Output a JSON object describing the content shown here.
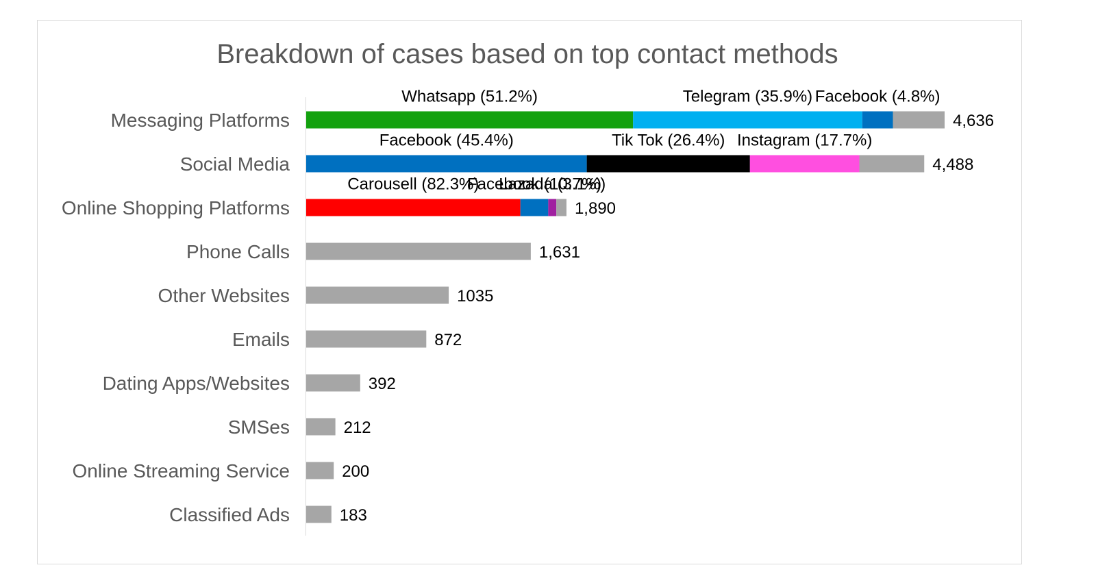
{
  "chart_data": {
    "type": "bar",
    "orientation": "horizontal",
    "stacked": true,
    "title": "Breakdown of cases based on top contact methods",
    "xlabel": "",
    "ylabel": "",
    "xlim": [
      0,
      4636
    ],
    "grid": false,
    "legend": "none",
    "categories": [
      {
        "name": "Messaging Platforms",
        "total": 4636,
        "total_label": "4,636",
        "segments": [
          {
            "label": "Whatsapp (51.2%)",
            "fraction": 0.512,
            "color": "#13A10E"
          },
          {
            "label": "Telegram (35.9%)",
            "fraction": 0.359,
            "color": "#00B0F0"
          },
          {
            "label": "Facebook (4.8%)",
            "fraction": 0.048,
            "color": "#0070C0"
          },
          {
            "label": "",
            "fraction": 0.081,
            "color": "#A6A6A6"
          }
        ]
      },
      {
        "name": "Social Media",
        "total": 4488,
        "total_label": "4,488",
        "segments": [
          {
            "label": "Facebook (45.4%)",
            "fraction": 0.454,
            "color": "#0070C0"
          },
          {
            "label": "Tik Tok (26.4%)",
            "fraction": 0.264,
            "color": "#000000"
          },
          {
            "label": "Instagram (17.7%)",
            "fraction": 0.177,
            "color": "#FF4FE0"
          },
          {
            "label": "",
            "fraction": 0.105,
            "color": "#A6A6A6"
          }
        ]
      },
      {
        "name": "Online Shopping Platforms",
        "total": 1890,
        "total_label": "1,890",
        "segments": [
          {
            "label": "Carousell (82.3%)",
            "fraction": 0.823,
            "color": "#FF0000"
          },
          {
            "label": "Facebook (10.7%)",
            "fraction": 0.107,
            "color": "#0070C0"
          },
          {
            "label": "Lazada (3.1%)",
            "fraction": 0.031,
            "color": "#A020A0"
          },
          {
            "label": "",
            "fraction": 0.039,
            "color": "#A6A6A6"
          }
        ]
      },
      {
        "name": "Phone Calls",
        "total": 1631,
        "total_label": "1,631",
        "segments": [
          {
            "label": "",
            "fraction": 1,
            "color": "#A6A6A6"
          }
        ]
      },
      {
        "name": "Other Websites",
        "total": 1035,
        "total_label": "1035",
        "segments": [
          {
            "label": "",
            "fraction": 1,
            "color": "#A6A6A6"
          }
        ]
      },
      {
        "name": "Emails",
        "total": 872,
        "total_label": "872",
        "segments": [
          {
            "label": "",
            "fraction": 1,
            "color": "#A6A6A6"
          }
        ]
      },
      {
        "name": "Dating Apps/Websites",
        "total": 392,
        "total_label": "392",
        "segments": [
          {
            "label": "",
            "fraction": 1,
            "color": "#A6A6A6"
          }
        ]
      },
      {
        "name": "SMSes",
        "total": 212,
        "total_label": "212",
        "segments": [
          {
            "label": "",
            "fraction": 1,
            "color": "#A6A6A6"
          }
        ]
      },
      {
        "name": "Online Streaming Service",
        "total": 200,
        "total_label": "200",
        "segments": [
          {
            "label": "",
            "fraction": 1,
            "color": "#A6A6A6"
          }
        ]
      },
      {
        "name": "Classified Ads",
        "total": 183,
        "total_label": "183",
        "segments": [
          {
            "label": "",
            "fraction": 1,
            "color": "#A6A6A6"
          }
        ]
      }
    ]
  }
}
